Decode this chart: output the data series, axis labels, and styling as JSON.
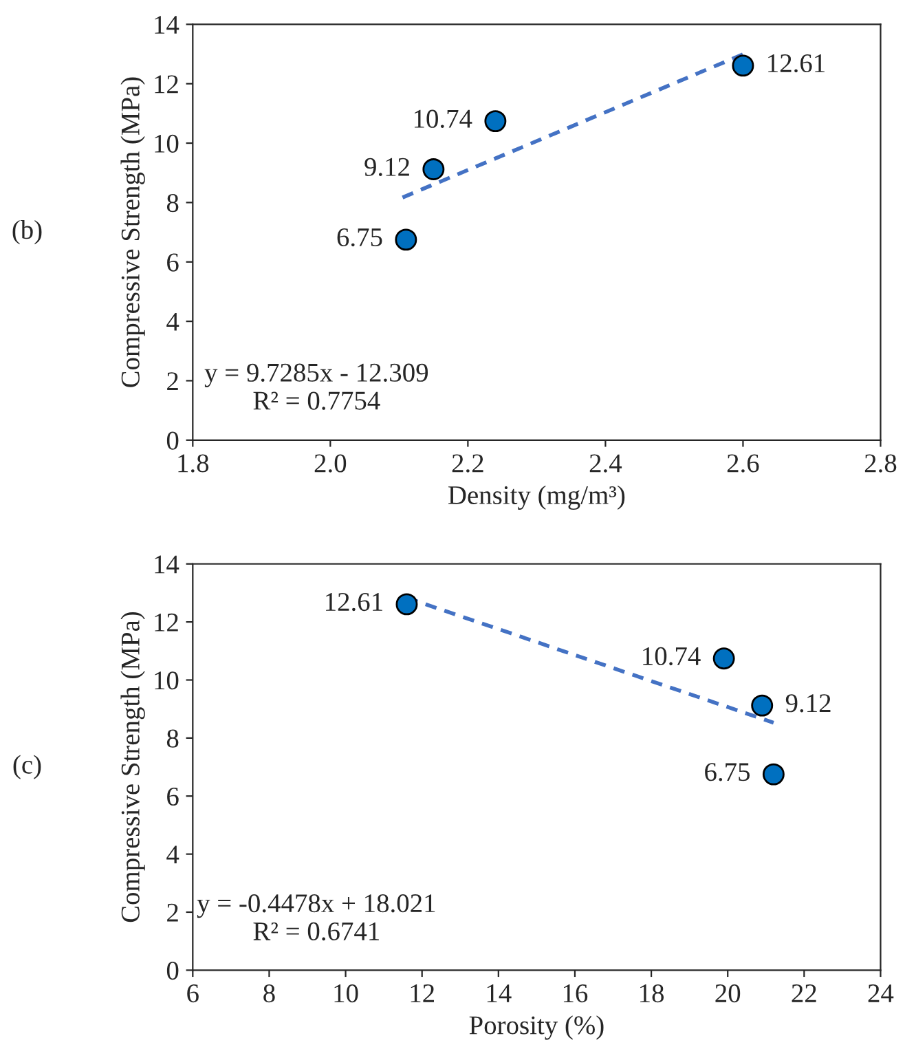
{
  "chart_data": [
    {
      "type": "scatter",
      "xlabel": "Density (mg/m³)",
      "ylabel": "Compressive Strength (MPa)",
      "annotations": [
        "(b)",
        "y = 9.7285x - 12.309",
        "R² = 0.7754"
      ],
      "xlim": [
        1.8,
        2.8
      ],
      "xticks": [
        1.8,
        {
          "value": 2.0,
          "label": "2.0"
        },
        2.2,
        2.4,
        2.6,
        2.8
      ],
      "ylim": [
        0,
        14
      ],
      "yticks": [
        0,
        2,
        4,
        6,
        8,
        10,
        12,
        14
      ],
      "grid": false,
      "legend": false,
      "series": [
        {
          "type": "scatter",
          "color": "#0070c0",
          "marker": "circle",
          "x": [
            2.11,
            2.15,
            2.24,
            2.6
          ],
          "values": [
            6.75,
            9.12,
            10.74,
            12.61
          ],
          "data_labels": true
        },
        {
          "type": "line",
          "color": "#4472c4",
          "line_style": "dashed",
          "marker": "none",
          "x": [
            2.105,
            2.6
          ],
          "values": [
            8.17,
            12.99
          ]
        }
      ]
    },
    {
      "type": "scatter",
      "xlabel": "Porosity (%)",
      "ylabel": "Compressive Strength (MPa)",
      "annotations": [
        "(c)",
        "y = -0.4478x + 18.021",
        "R² = 0.6741"
      ],
      "xlim": [
        6,
        24
      ],
      "xticks": [
        6,
        8,
        10,
        12,
        14,
        16,
        18,
        20,
        22,
        24
      ],
      "ylim": [
        0,
        14
      ],
      "yticks": [
        0,
        2,
        4,
        6,
        8,
        10,
        12,
        14
      ],
      "grid": false,
      "legend": false,
      "series": [
        {
          "type": "scatter",
          "color": "#0070c0",
          "marker": "circle",
          "x": [
            11.6,
            19.9,
            20.9,
            21.2
          ],
          "values": [
            12.61,
            10.74,
            9.12,
            6.75
          ],
          "data_labels": true
        },
        {
          "type": "line",
          "color": "#4472c4",
          "line_style": "dashed",
          "marker": "none",
          "x": [
            11.6,
            21.2
          ],
          "values": [
            12.83,
            8.53
          ]
        }
      ]
    }
  ]
}
